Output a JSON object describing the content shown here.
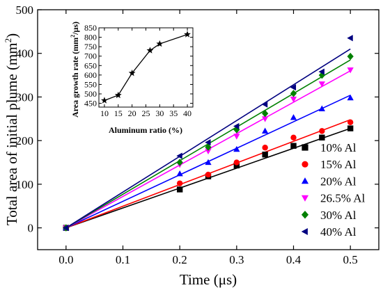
{
  "chart_data": [
    {
      "type": "scatter",
      "xlabel": "Time (μs)",
      "ylabel_main": "Total area of initial plume (mm",
      "ylabel_sup": "2",
      "ylabel_end": ")",
      "xlim": [
        -0.05,
        0.55
      ],
      "ylim": [
        -50,
        500
      ],
      "xticks": [
        0.0,
        0.1,
        0.2,
        0.3,
        0.4,
        0.5
      ],
      "xtick_labels": [
        "0.0",
        "0.1",
        "0.2",
        "0.3",
        "0.4",
        "0.5"
      ],
      "yticks": [
        0,
        100,
        200,
        300,
        400,
        500
      ],
      "ytick_labels": [
        "0",
        "100",
        "200",
        "300",
        "400",
        "500"
      ],
      "legend_position": "bottom-right",
      "fit_lines": true,
      "series": [
        {
          "name": "10% Al",
          "color": "#000000",
          "marker": "square",
          "x": [
            0.0,
            0.2,
            0.25,
            0.3,
            0.35,
            0.4,
            0.45,
            0.5
          ],
          "y": [
            0,
            88,
            118,
            143,
            168,
            188,
            207,
            228
          ],
          "fit_end": 228
        },
        {
          "name": "15% Al",
          "color": "#ff0000",
          "marker": "circle",
          "x": [
            0.0,
            0.2,
            0.25,
            0.3,
            0.35,
            0.4,
            0.45,
            0.5
          ],
          "y": [
            0,
            102,
            122,
            150,
            184,
            207,
            222,
            242
          ],
          "fit_end": 248
        },
        {
          "name": "20% Al",
          "color": "#0000ff",
          "marker": "triangle-up",
          "x": [
            0.0,
            0.2,
            0.25,
            0.3,
            0.35,
            0.4,
            0.45,
            0.5
          ],
          "y": [
            0,
            124,
            150,
            180,
            222,
            253,
            273,
            298
          ],
          "fit_end": 304
        },
        {
          "name": "26.5% Al",
          "color": "#ff00ff",
          "marker": "triangle-down",
          "x": [
            0.0,
            0.2,
            0.25,
            0.3,
            0.35,
            0.4,
            0.45,
            0.5
          ],
          "y": [
            0,
            145,
            176,
            210,
            250,
            295,
            330,
            362
          ],
          "fit_end": 360
        },
        {
          "name": "30% Al",
          "color": "#008000",
          "marker": "diamond",
          "x": [
            0.0,
            0.2,
            0.25,
            0.3,
            0.35,
            0.4,
            0.45,
            0.5
          ],
          "y": [
            0,
            150,
            185,
            225,
            262,
            308,
            350,
            393
          ],
          "fit_end": 385
        },
        {
          "name": "40% Al",
          "color": "#000080",
          "marker": "triangle-left",
          "x": [
            0.0,
            0.2,
            0.25,
            0.3,
            0.35,
            0.4,
            0.45,
            0.5
          ],
          "y": [
            0,
            165,
            196,
            233,
            283,
            322,
            358,
            435
          ],
          "fit_end": 410
        }
      ]
    },
    {
      "type": "line",
      "inset": true,
      "xlabel": "Aluminum ratio (%)",
      "ylabel_main": "Area growth rate (mm",
      "ylabel_sup": "2",
      "ylabel_end": "/μs)",
      "xlim": [
        8,
        42
      ],
      "ylim": [
        430,
        850
      ],
      "xticks": [
        10,
        15,
        20,
        25,
        30,
        35,
        40
      ],
      "xtick_labels": [
        "10",
        "15",
        "20",
        "25",
        "30",
        "35",
        "40"
      ],
      "yticks": [
        450,
        500,
        550,
        600,
        650,
        700,
        750,
        800,
        850
      ],
      "ytick_labels": [
        "450",
        "500",
        "550",
        "600",
        "650",
        "700",
        "750",
        "800",
        "850"
      ],
      "marker": "star",
      "color": "#000000",
      "x": [
        10,
        15,
        20,
        26.5,
        30,
        40
      ],
      "y": [
        465,
        493,
        610,
        730,
        765,
        815
      ]
    }
  ]
}
